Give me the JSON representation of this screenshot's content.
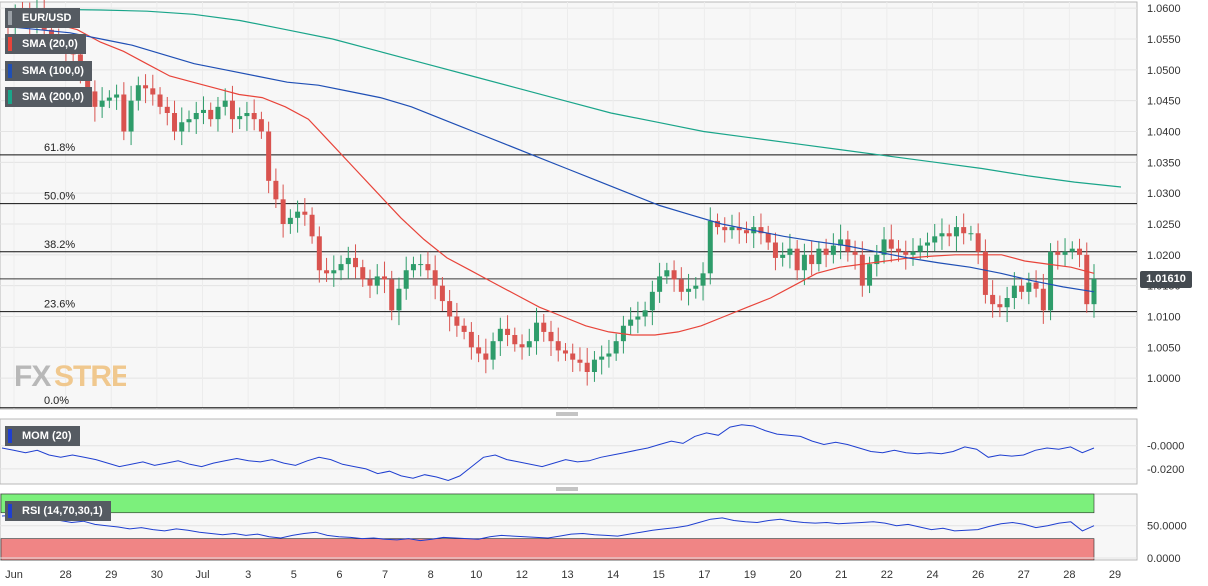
{
  "chart_data": [
    {
      "type": "candlestick",
      "symbol": "EUR/USD",
      "ylim": [
        0.995,
        1.061
      ],
      "y_ticks": [
        1.0,
        1.005,
        1.01,
        1.015,
        1.02,
        1.025,
        1.03,
        1.035,
        1.04,
        1.045,
        1.05,
        1.055,
        1.06
      ],
      "y_tick_labels": [
        "1.0000",
        "1.0050",
        "1.0100",
        "1.0150",
        "1.0200",
        "1.0250",
        "1.0300",
        "1.0350",
        "1.0400",
        "1.0450",
        "1.0500",
        "1.0550",
        "1.0600"
      ],
      "x_tick_labels": [
        "Jun",
        "28",
        "29",
        "30",
        "Jul",
        "3",
        "5",
        "6",
        "7",
        "8",
        "10",
        "12",
        "13",
        "14",
        "15",
        "17",
        "19",
        "20",
        "21",
        "22",
        "24",
        "26",
        "27",
        "28",
        "29"
      ],
      "current_price": "1.01610",
      "close_values": [
        1.057,
        1.059,
        1.0585,
        1.0575,
        1.06,
        1.0565,
        1.0555,
        1.054,
        1.053,
        1.0525,
        1.05,
        1.0465,
        1.044,
        1.045,
        1.0455,
        1.046,
        1.04,
        1.045,
        1.0475,
        1.047,
        1.046,
        1.044,
        1.043,
        1.04,
        1.0415,
        1.042,
        1.043,
        1.0435,
        1.042,
        1.044,
        1.045,
        1.042,
        1.0425,
        1.043,
        1.042,
        1.04,
        1.032,
        1.029,
        1.025,
        1.026,
        1.027,
        1.0265,
        1.023,
        1.0175,
        1.017,
        1.0175,
        1.0185,
        1.0195,
        1.018,
        1.016,
        1.015,
        1.0165,
        1.016,
        1.011,
        1.0145,
        1.0175,
        1.0185,
        1.0185,
        1.0175,
        1.015,
        1.0125,
        1.01,
        1.0085,
        1.0075,
        1.005,
        1.004,
        1.003,
        1.006,
        1.008,
        1.007,
        1.0055,
        1.005,
        1.006,
        1.009,
        1.0075,
        1.006,
        1.0045,
        1.004,
        1.003,
        1.0025,
        1.001,
        1.003,
        1.0035,
        1.004,
        1.006,
        1.0085,
        1.0095,
        1.01,
        1.011,
        1.014,
        1.0165,
        1.0175,
        1.016,
        1.014,
        1.0145,
        1.015,
        1.017,
        1.0255,
        1.0245,
        1.024,
        1.0245,
        1.024,
        1.0235,
        1.0245,
        1.0235,
        1.022,
        1.0195,
        1.02,
        1.021,
        1.0175,
        1.02,
        1.0185,
        1.021,
        1.02,
        1.0215,
        1.0225,
        1.0205,
        1.02,
        1.015,
        1.0185,
        1.02,
        1.0225,
        1.021,
        1.0205,
        1.02,
        1.0205,
        1.0215,
        1.022,
        1.023,
        1.0235,
        1.023,
        1.0245,
        1.0235,
        1.0235,
        1.0205,
        1.0135,
        1.012,
        1.0115,
        1.013,
        1.015,
        1.014,
        1.0155,
        1.0145,
        1.011,
        1.0205,
        1.02,
        1.0205,
        1.021,
        1.02,
        1.012,
        1.0161
      ],
      "series": [
        {
          "name": "SMA (20,0)",
          "values": [
            1.059,
            1.0585,
            1.0575,
            1.0565,
            1.0545,
            1.053,
            1.051,
            1.049,
            1.048,
            1.047,
            1.046,
            1.0455,
            1.044,
            1.042,
            1.038,
            1.034,
            1.03,
            1.026,
            1.0225,
            1.0195,
            1.0175,
            1.0155,
            1.0135,
            1.0115,
            1.01,
            1.0085,
            1.0075,
            1.007,
            1.007,
            1.0075,
            1.0085,
            1.01,
            1.0115,
            1.013,
            1.015,
            1.017,
            1.018,
            1.0185,
            1.019,
            1.0195,
            1.0198,
            1.02,
            1.02,
            1.02,
            1.019,
            1.0185,
            1.018,
            1.017
          ]
        },
        {
          "name": "SMA (100,0)",
          "values": [
            1.057,
            1.0565,
            1.056,
            1.055,
            1.054,
            1.0525,
            1.051,
            1.05,
            1.049,
            1.048,
            1.0475,
            1.0465,
            1.0455,
            1.044,
            1.042,
            1.04,
            1.038,
            1.036,
            1.034,
            1.032,
            1.03,
            1.028,
            1.0265,
            1.025,
            1.024,
            1.023,
            1.0222,
            1.0215,
            1.0205,
            1.0195,
            1.0187,
            1.018,
            1.017,
            1.0158,
            1.0148,
            1.014
          ]
        },
        {
          "name": "SMA (200,0)",
          "values": [
            1.0595,
            1.0598,
            1.0597,
            1.0595,
            1.059,
            1.058,
            1.0565,
            1.055,
            1.053,
            1.051,
            1.049,
            1.047,
            1.045,
            1.043,
            1.0415,
            1.04,
            1.039,
            1.038,
            1.037,
            1.036,
            1.035,
            1.034,
            1.0328,
            1.0318,
            1.031
          ]
        }
      ],
      "fibonacci": [
        {
          "label": "61.8%",
          "value": 1.0362
        },
        {
          "label": "50.0%",
          "value": 1.0283
        },
        {
          "label": "38.2%",
          "value": 1.0205
        },
        {
          "label": "23.6%",
          "value": 1.0108
        },
        {
          "label": "0.0%",
          "value": 0.9952
        }
      ]
    },
    {
      "type": "line",
      "name": "MOM (20)",
      "y_tick_labels": [
        "-0.0000",
        "-0.0200"
      ],
      "y_ticks": [
        0.0,
        -0.02
      ],
      "ylim": [
        -0.033,
        0.023
      ],
      "values": [
        -0.002,
        -0.004,
        -0.006,
        -0.004,
        -0.008,
        -0.01,
        -0.008,
        -0.01,
        -0.012,
        -0.015,
        -0.018,
        -0.016,
        -0.014,
        -0.017,
        -0.015,
        -0.013,
        -0.016,
        -0.018,
        -0.015,
        -0.013,
        -0.011,
        -0.013,
        -0.014,
        -0.012,
        -0.015,
        -0.017,
        -0.013,
        -0.01,
        -0.012,
        -0.016,
        -0.018,
        -0.02,
        -0.024,
        -0.022,
        -0.026,
        -0.028,
        -0.025,
        -0.027,
        -0.03,
        -0.026,
        -0.018,
        -0.01,
        -0.008,
        -0.012,
        -0.014,
        -0.016,
        -0.018,
        -0.015,
        -0.012,
        -0.014,
        -0.013,
        -0.01,
        -0.008,
        -0.006,
        -0.004,
        -0.002,
        0.001,
        0.004,
        0.002,
        0.008,
        0.011,
        0.009,
        0.016,
        0.018,
        0.017,
        0.013,
        0.01,
        0.009,
        0.008,
        0.004,
        0.001,
        0.003,
        0.001,
        -0.002,
        -0.005,
        -0.006,
        -0.004,
        -0.006,
        -0.007,
        -0.006,
        -0.007,
        -0.005,
        -0.001,
        -0.003,
        -0.01,
        -0.008,
        -0.009,
        -0.008,
        -0.004,
        -0.002,
        -0.003,
        -0.001,
        -0.006,
        -0.002
      ]
    },
    {
      "type": "line",
      "name": "RSI (14,70,30,1)",
      "y_tick_labels": [
        "50.0000",
        "0.0000"
      ],
      "y_ticks": [
        50,
        0
      ],
      "ylim": [
        -3,
        99
      ],
      "overbought": 70,
      "oversold": 30,
      "values": [
        65,
        66,
        62,
        64,
        60,
        58,
        55,
        57,
        52,
        50,
        48,
        45,
        47,
        44,
        42,
        45,
        43,
        40,
        38,
        36,
        38,
        35,
        37,
        33,
        31,
        35,
        38,
        40,
        35,
        33,
        32,
        30,
        31,
        29,
        28,
        30,
        27,
        29,
        32,
        31,
        30,
        29,
        33,
        35,
        34,
        33,
        32,
        31,
        34,
        37,
        38,
        36,
        35,
        34,
        37,
        40,
        43,
        45,
        47,
        50,
        55,
        60,
        62,
        58,
        56,
        55,
        58,
        60,
        57,
        55,
        54,
        55,
        53,
        54,
        55,
        56,
        54,
        50,
        52,
        48,
        44,
        46,
        42,
        43,
        44,
        49,
        53,
        55,
        52,
        47,
        50,
        54,
        56,
        42,
        50
      ]
    }
  ]
}
